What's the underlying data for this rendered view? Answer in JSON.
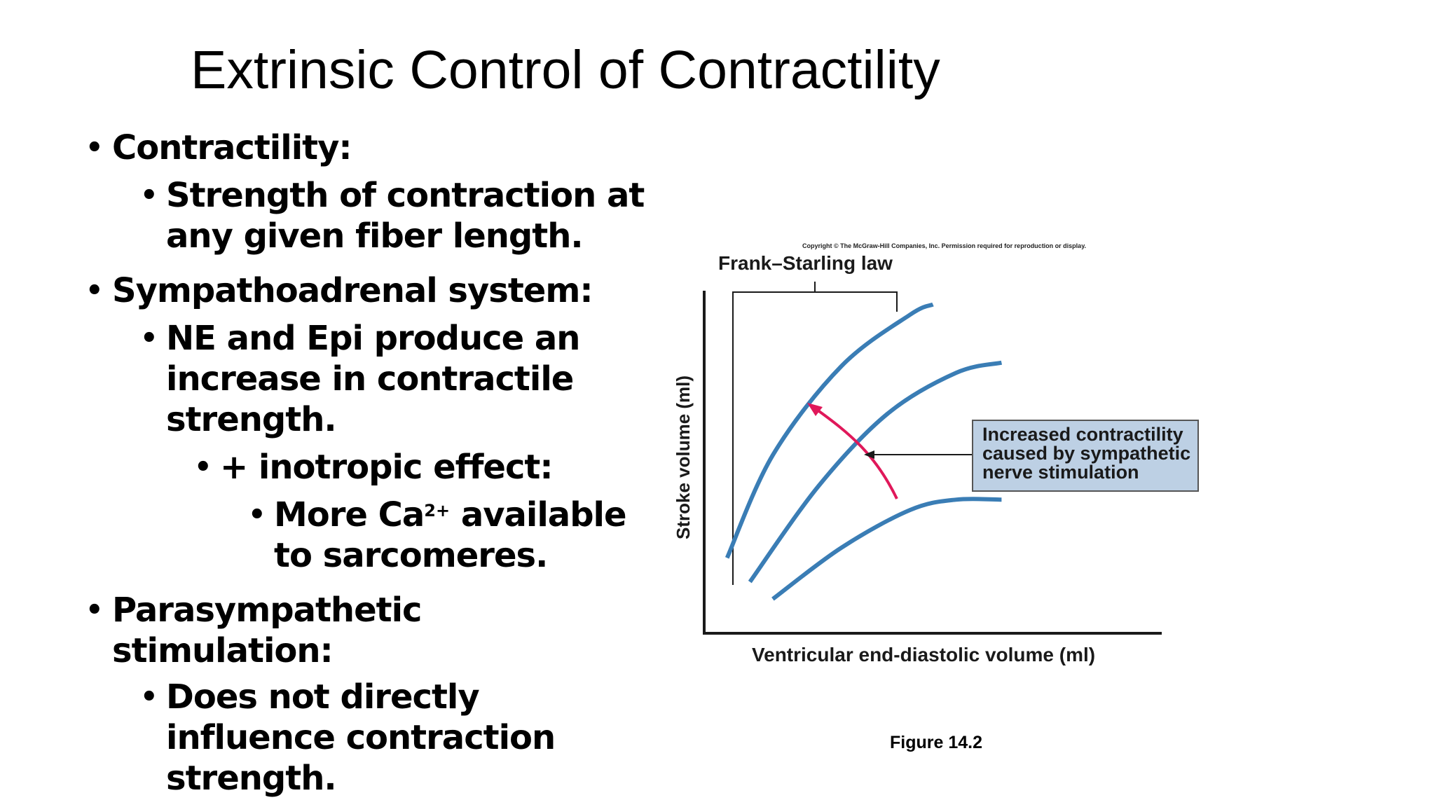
{
  "slide": {
    "title": "Extrinsic Control of Contractility"
  },
  "bullets": {
    "b1": "Contractility:",
    "b1_1_l1": "Strength of contraction at",
    "b1_1_l2": "any given fiber length.",
    "b2": "Sympathoadrenal system:",
    "b2_1_l1": "NE and Epi produce an",
    "b2_1_l2": "increase in contractile",
    "b2_1_l3": "strength.",
    "b2_1_1": "+ inotropic effect:",
    "b2_1_1_1_pre": "More Ca",
    "b2_1_1_1_sup": "2+",
    "b2_1_1_1_post": " available",
    "b2_1_1_1_l2": "to sarcomeres.",
    "b3_l1": "Parasympathetic",
    "b3_l2": "stimulation:",
    "b3_1_l1": "Does not directly",
    "b3_1_l2": "influence contraction",
    "b3_1_l3": "strength."
  },
  "figure": {
    "copyright": "Copyright © The McGraw-Hill Companies, Inc. Permission required for reproduction or display.",
    "bracket_label": "Frank–Starling law",
    "callout_l1": "Increased contractility",
    "callout_l2": "caused by sympathetic",
    "callout_l3": "nerve stimulation",
    "caption": "Figure 14.2"
  },
  "chart_data": {
    "type": "line",
    "title": "",
    "xlabel": "Ventricular end-diastolic volume (ml)",
    "ylabel": "Stroke volume (ml)",
    "ticks_shown": false,
    "grid": false,
    "series": [
      {
        "x": [
          0.05,
          0.15,
          0.3,
          0.45,
          0.5
        ],
        "y": [
          0.22,
          0.52,
          0.78,
          0.93,
          0.96
        ]
      },
      {
        "x": [
          0.1,
          0.25,
          0.4,
          0.55,
          0.65
        ],
        "y": [
          0.15,
          0.43,
          0.64,
          0.76,
          0.79
        ]
      },
      {
        "x": [
          0.15,
          0.3,
          0.45,
          0.55,
          0.65
        ],
        "y": [
          0.1,
          0.25,
          0.36,
          0.39,
          0.39
        ]
      }
    ],
    "colors": {
      "curves": "#3a7db5",
      "arrow": "#e0185a",
      "callout_fill": "#bdd0e4",
      "axes": "#1a1a1a"
    },
    "annotations": [
      {
        "type": "bracket",
        "text": "Frank–Starling law"
      },
      {
        "type": "callout",
        "text": "Increased contractility caused by sympathetic nerve stimulation"
      }
    ]
  }
}
